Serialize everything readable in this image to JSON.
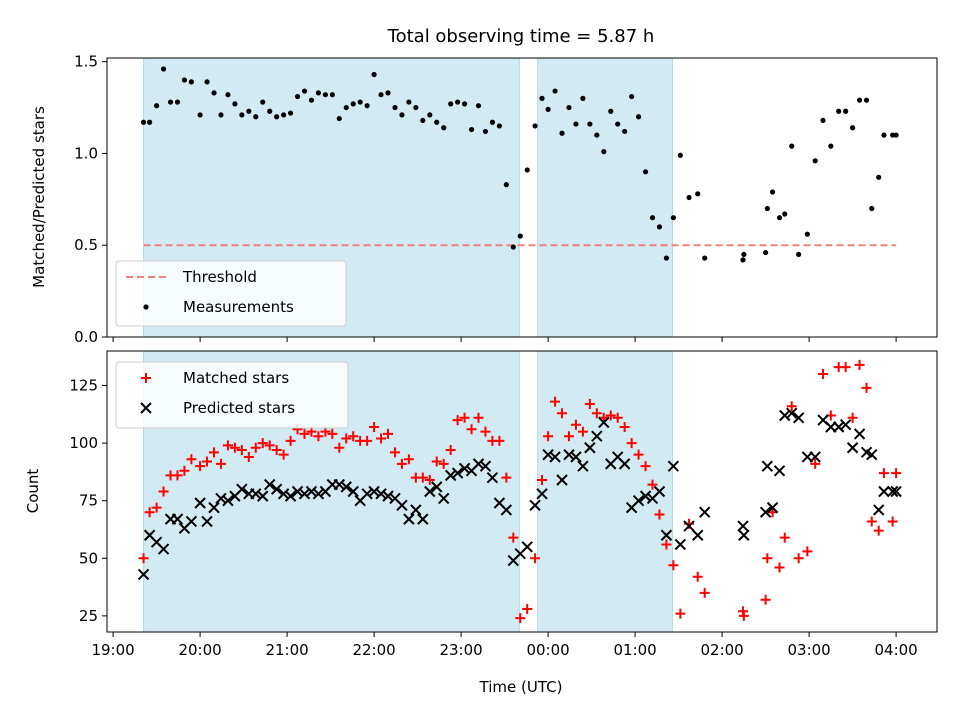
{
  "chart_data": {
    "title": "Total observing time = 5.87 h",
    "xlabel": "Time (UTC)",
    "x_unit": "hours UTC (values past 24 are after midnight)",
    "x_range": [
      18.93,
      28.47
    ],
    "x_ticks": [
      {
        "value": 19,
        "label": "19:00"
      },
      {
        "value": 20,
        "label": "20:00"
      },
      {
        "value": 21,
        "label": "21:00"
      },
      {
        "value": 22,
        "label": "22:00"
      },
      {
        "value": 23,
        "label": "23:00"
      },
      {
        "value": 24,
        "label": "00:00"
      },
      {
        "value": 25,
        "label": "01:00"
      },
      {
        "value": 26,
        "label": "02:00"
      },
      {
        "value": 27,
        "label": "03:00"
      },
      {
        "value": 28,
        "label": "04:00"
      }
    ],
    "shaded_intervals": [
      [
        19.35,
        23.67
      ],
      [
        23.88,
        25.43
      ]
    ],
    "shade_color": "#add8e6",
    "panels": [
      {
        "type": "scatter",
        "ylabel": "Matched/Predicted stars",
        "ylim": [
          0,
          1.52
        ],
        "y_ticks": [
          {
            "value": 0,
            "label": "0.0"
          },
          {
            "value": 0.5,
            "label": "0.5"
          },
          {
            "value": 1.0,
            "label": "1.0"
          },
          {
            "value": 1.5,
            "label": "1.5"
          }
        ],
        "legend": {
          "position": "lower-left",
          "entries": [
            {
              "label": "Threshold",
              "style": "dashed-line",
              "color": "#f08080"
            },
            {
              "label": "Measurements",
              "style": "dot",
              "color": "#000000"
            }
          ]
        },
        "threshold": {
          "name": "Threshold",
          "y": 0.5,
          "x": [
            19.35,
            28.0
          ],
          "color": "#f08080"
        },
        "series": [
          {
            "name": "Measurements",
            "marker": "dot",
            "color": "#000000",
            "x": [
              19.35,
              19.42,
              19.5,
              19.58,
              19.66,
              19.74,
              19.82,
              19.9,
              20.0,
              20.08,
              20.16,
              20.24,
              20.32,
              20.4,
              20.48,
              20.56,
              20.64,
              20.72,
              20.8,
              20.88,
              20.96,
              21.04,
              21.12,
              21.2,
              21.28,
              21.36,
              21.44,
              21.52,
              21.6,
              21.68,
              21.76,
              21.84,
              21.92,
              22.0,
              22.08,
              22.16,
              22.24,
              22.32,
              22.4,
              22.48,
              22.56,
              22.64,
              22.72,
              22.8,
              22.88,
              22.96,
              23.04,
              23.12,
              23.2,
              23.28,
              23.36,
              23.44,
              23.52,
              23.6,
              23.68,
              23.76,
              23.85,
              23.93,
              24.0,
              24.08,
              24.16,
              24.24,
              24.32,
              24.4,
              24.48,
              24.56,
              24.64,
              24.72,
              24.8,
              24.88,
              24.96,
              25.04,
              25.12,
              25.2,
              25.28,
              25.36,
              25.44,
              25.52,
              25.62,
              25.72,
              25.8,
              26.24,
              26.25,
              26.5,
              26.52,
              26.58,
              26.66,
              26.72,
              26.8,
              26.88,
              26.98,
              27.07,
              27.16,
              27.25,
              27.34,
              27.42,
              27.5,
              27.58,
              27.66,
              27.72,
              27.8,
              27.86,
              27.96,
              28.0
            ],
            "y": [
              1.17,
              1.17,
              1.26,
              1.46,
              1.28,
              1.28,
              1.4,
              1.39,
              1.21,
              1.39,
              1.33,
              1.21,
              1.32,
              1.27,
              1.21,
              1.23,
              1.2,
              1.28,
              1.23,
              1.2,
              1.21,
              1.22,
              1.31,
              1.34,
              1.29,
              1.33,
              1.32,
              1.32,
              1.19,
              1.25,
              1.27,
              1.28,
              1.26,
              1.43,
              1.32,
              1.33,
              1.25,
              1.21,
              1.28,
              1.25,
              1.18,
              1.21,
              1.17,
              1.14,
              1.27,
              1.28,
              1.27,
              1.13,
              1.26,
              1.12,
              1.17,
              1.15,
              0.83,
              0.49,
              0.55,
              0.91,
              1.15,
              1.3,
              1.24,
              1.34,
              1.11,
              1.25,
              1.16,
              1.3,
              1.16,
              1.1,
              1.01,
              1.23,
              1.16,
              1.12,
              1.31,
              1.2,
              0.9,
              0.65,
              0.6,
              0.43,
              0.65,
              0.99,
              0.76,
              0.78,
              0.43,
              0.42,
              0.45,
              0.46,
              0.7,
              0.79,
              0.65,
              0.67,
              1.04,
              0.45,
              0.56,
              0.96,
              1.18,
              1.04,
              1.23,
              1.23,
              1.14,
              1.29,
              1.29,
              0.7,
              0.87,
              1.1,
              1.1,
              1.1
            ]
          }
        ]
      },
      {
        "type": "scatter",
        "ylabel": "Count",
        "ylim": [
          18,
          140
        ],
        "y_ticks": [
          {
            "value": 25,
            "label": "25"
          },
          {
            "value": 50,
            "label": "50"
          },
          {
            "value": 75,
            "label": "75"
          },
          {
            "value": 100,
            "label": "100"
          },
          {
            "value": 125,
            "label": "125"
          }
        ],
        "legend": {
          "position": "upper-left",
          "entries": [
            {
              "label": "Matched stars",
              "style": "plus",
              "color": "#ff0000"
            },
            {
              "label": "Predicted stars",
              "style": "x",
              "color": "#000000"
            }
          ]
        },
        "series": [
          {
            "name": "Matched stars",
            "marker": "plus",
            "color": "#ff0000",
            "x": [
              19.35,
              19.42,
              19.5,
              19.58,
              19.66,
              19.74,
              19.82,
              19.9,
              20.0,
              20.08,
              20.16,
              20.24,
              20.32,
              20.4,
              20.48,
              20.56,
              20.64,
              20.72,
              20.8,
              20.88,
              20.96,
              21.04,
              21.12,
              21.2,
              21.28,
              21.36,
              21.44,
              21.52,
              21.6,
              21.68,
              21.76,
              21.84,
              21.92,
              22.0,
              22.08,
              22.16,
              22.24,
              22.32,
              22.4,
              22.48,
              22.56,
              22.64,
              22.72,
              22.8,
              22.88,
              22.96,
              23.04,
              23.12,
              23.2,
              23.28,
              23.36,
              23.44,
              23.52,
              23.6,
              23.68,
              23.76,
              23.85,
              23.93,
              24.0,
              24.08,
              24.16,
              24.24,
              24.32,
              24.4,
              24.48,
              24.56,
              24.64,
              24.72,
              24.8,
              24.88,
              24.96,
              25.04,
              25.12,
              25.2,
              25.28,
              25.36,
              25.44,
              25.52,
              25.62,
              25.72,
              25.8,
              26.24,
              26.25,
              26.5,
              26.52,
              26.58,
              26.66,
              26.72,
              26.8,
              26.88,
              26.98,
              27.07,
              27.16,
              27.25,
              27.34,
              27.42,
              27.5,
              27.58,
              27.66,
              27.72,
              27.8,
              27.86,
              27.96,
              28.0
            ],
            "y": [
              50,
              70,
              72,
              79,
              86,
              86,
              88,
              93,
              90,
              92,
              96,
              91,
              99,
              98,
              97,
              94,
              98,
              100,
              99,
              97,
              95,
              101,
              106,
              104,
              105,
              103,
              105,
              104,
              98,
              102,
              103,
              101,
              101,
              107,
              102,
              104,
              96,
              91,
              93,
              85,
              85,
              84,
              92,
              91,
              97,
              110,
              111,
              106,
              111,
              105,
              101,
              101,
              85,
              59,
              24,
              28,
              50,
              84,
              103,
              118,
              113,
              103,
              108,
              105,
              117,
              113,
              111,
              112,
              111,
              107,
              100,
              95,
              90,
              82,
              69,
              56,
              47,
              26,
              65,
              42,
              35,
              27,
              25,
              32,
              50,
              70,
              46,
              59,
              116,
              50,
              53,
              91,
              130,
              112,
              133,
              133,
              111,
              134,
              124,
              66,
              62,
              87,
              66,
              87
            ]
          },
          {
            "name": "Predicted stars",
            "marker": "x",
            "color": "#000000",
            "x": [
              19.35,
              19.42,
              19.5,
              19.58,
              19.66,
              19.74,
              19.82,
              19.9,
              20.0,
              20.08,
              20.16,
              20.24,
              20.32,
              20.4,
              20.48,
              20.56,
              20.64,
              20.72,
              20.8,
              20.88,
              20.96,
              21.04,
              21.12,
              21.2,
              21.28,
              21.36,
              21.44,
              21.52,
              21.6,
              21.68,
              21.76,
              21.84,
              21.92,
              22.0,
              22.08,
              22.16,
              22.24,
              22.32,
              22.4,
              22.48,
              22.56,
              22.64,
              22.72,
              22.8,
              22.88,
              22.96,
              23.04,
              23.12,
              23.2,
              23.28,
              23.36,
              23.44,
              23.52,
              23.6,
              23.68,
              23.76,
              23.85,
              23.93,
              24.0,
              24.08,
              24.16,
              24.24,
              24.32,
              24.4,
              24.48,
              24.56,
              24.64,
              24.72,
              24.8,
              24.88,
              24.96,
              25.04,
              25.12,
              25.2,
              25.28,
              25.36,
              25.44,
              25.52,
              25.62,
              25.72,
              25.8,
              26.24,
              26.25,
              26.5,
              26.52,
              26.58,
              26.66,
              26.72,
              26.8,
              26.88,
              26.98,
              27.07,
              27.16,
              27.25,
              27.34,
              27.42,
              27.5,
              27.58,
              27.66,
              27.72,
              27.8,
              27.86,
              27.96,
              28.0
            ],
            "y": [
              43,
              60,
              57,
              54,
              67,
              67,
              63,
              66,
              74,
              66,
              72,
              76,
              75,
              77,
              80,
              78,
              78,
              77,
              82,
              80,
              78,
              77,
              79,
              78,
              79,
              78,
              79,
              82,
              82,
              81,
              79,
              75,
              78,
              79,
              78,
              77,
              76,
              73,
              67,
              71,
              67,
              79,
              81,
              76,
              86,
              87,
              89,
              88,
              91,
              90,
              85,
              74,
              71,
              49,
              52,
              55,
              73,
              78,
              95,
              94,
              84,
              95,
              94,
              90,
              98,
              103,
              109,
              91,
              94,
              91,
              72,
              75,
              77,
              76,
              79,
              60,
              90,
              56,
              64,
              60,
              70,
              64,
              60,
              70,
              90,
              72,
              88,
              112,
              113,
              111,
              94,
              94,
              110,
              107,
              107,
              108,
              98,
              104,
              96,
              95,
              71,
              79,
              79,
              79
            ]
          }
        ]
      }
    ]
  }
}
